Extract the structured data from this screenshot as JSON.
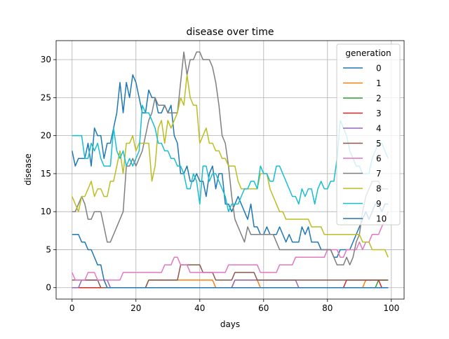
{
  "chart_data": {
    "type": "line",
    "title": "disease over time",
    "xlabel": "days",
    "ylabel": "disease",
    "xlim": [
      -5,
      104
    ],
    "ylim": [
      -1.5,
      32.5
    ],
    "xticks": [
      0,
      20,
      40,
      60,
      80,
      100
    ],
    "yticks": [
      0,
      5,
      10,
      15,
      20,
      25,
      30
    ],
    "grid": true,
    "legend": {
      "title": "generation",
      "placement": "top-right"
    },
    "series": [
      {
        "name": "0",
        "color": "#1f77b4",
        "values": [
          18,
          16,
          17,
          17,
          17,
          19,
          16,
          21,
          20,
          20,
          17,
          19,
          19,
          21,
          23,
          27,
          23,
          27,
          25,
          28,
          27,
          25,
          23,
          23,
          26,
          25,
          25,
          23,
          23,
          24,
          23,
          24,
          20,
          19,
          15,
          15,
          16,
          14,
          14,
          15,
          14,
          14,
          12,
          15,
          16,
          13,
          15,
          15,
          11,
          11,
          10,
          11,
          12,
          11,
          10,
          9,
          11,
          8,
          8,
          7,
          7,
          8,
          7,
          7,
          7,
          8,
          7,
          6,
          7,
          6,
          6,
          6,
          8,
          7,
          8,
          6,
          6,
          6,
          5,
          5,
          5,
          5,
          4,
          4,
          5,
          5,
          5,
          5,
          6,
          7,
          8,
          9,
          10,
          9,
          10,
          11,
          11,
          10,
          11,
          11
        ]
      },
      {
        "name": "1",
        "color": "#ff7f0e",
        "values": [
          0,
          0,
          0,
          0,
          0,
          0,
          0,
          0,
          0,
          0,
          0,
          0,
          0,
          0,
          0,
          0,
          0,
          0,
          0,
          0,
          0,
          0,
          0,
          0,
          1,
          1,
          1,
          1,
          1,
          1,
          1,
          1,
          1,
          1,
          1,
          1,
          1,
          1,
          1,
          1,
          1,
          1,
          1,
          1,
          1,
          0,
          0,
          0,
          0,
          0,
          0,
          1,
          1,
          1,
          1,
          1,
          1,
          1,
          1,
          0,
          0,
          0,
          0,
          0,
          0,
          0,
          0,
          0,
          0,
          0,
          0,
          0,
          0,
          0,
          0,
          0,
          0,
          0,
          0,
          0,
          0,
          0,
          0,
          0,
          0,
          0,
          0,
          0,
          0,
          0,
          0,
          0,
          1,
          1,
          1,
          1,
          1,
          1,
          1,
          1
        ]
      },
      {
        "name": "2",
        "color": "#2ca02c",
        "values": [
          0,
          0,
          0,
          0,
          0,
          0,
          0,
          0,
          0,
          0,
          0,
          0,
          0,
          0,
          0,
          0,
          0,
          0,
          0,
          0,
          0,
          0,
          0,
          0,
          0,
          0,
          0,
          0,
          0,
          0,
          0,
          0,
          0,
          0,
          0,
          0,
          0,
          0,
          0,
          0,
          0,
          0,
          0,
          0,
          0,
          0,
          0,
          0,
          0,
          0,
          0,
          0,
          0,
          0,
          0,
          0,
          0,
          0,
          0,
          0,
          0,
          0,
          0,
          0,
          0,
          0,
          0,
          0,
          0,
          0,
          0,
          0,
          0,
          0,
          0,
          0,
          0,
          0,
          0,
          0,
          0,
          0,
          0,
          0,
          0,
          0,
          0,
          0,
          0,
          0,
          0,
          0,
          0,
          0,
          0,
          0,
          1,
          1,
          1,
          1
        ]
      },
      {
        "name": "3",
        "color": "#d62728",
        "values": [
          0,
          0,
          0,
          0,
          0,
          0,
          0,
          0,
          0,
          0,
          0,
          0,
          0,
          0,
          0,
          0,
          0,
          0,
          0,
          0,
          0,
          0,
          0,
          0,
          0,
          0,
          0,
          0,
          0,
          0,
          0,
          0,
          0,
          0,
          0,
          0,
          0,
          0,
          0,
          0,
          0,
          0,
          0,
          0,
          0,
          0,
          0,
          0,
          0,
          0,
          0,
          0,
          0,
          0,
          0,
          0,
          0,
          0,
          0,
          0,
          0,
          0,
          0,
          0,
          0,
          0,
          0,
          0,
          0,
          0,
          0,
          0,
          0,
          0,
          0,
          0,
          0,
          0,
          0,
          0,
          0,
          0,
          0,
          0,
          0,
          0,
          1,
          1,
          1,
          1,
          1,
          1,
          1,
          1,
          1,
          1,
          1,
          0,
          0,
          0
        ]
      },
      {
        "name": "4",
        "color": "#9467bd",
        "values": [
          0,
          0,
          0,
          1,
          1,
          1,
          1,
          1,
          1,
          1,
          1,
          1,
          0,
          0,
          0,
          0,
          0,
          0,
          0,
          0,
          0,
          0,
          0,
          0,
          0,
          0,
          0,
          0,
          0,
          0,
          0,
          0,
          0,
          0,
          0,
          0,
          0,
          0,
          0,
          0,
          0,
          0,
          0,
          0,
          0,
          0,
          0,
          0,
          0,
          0,
          0,
          1,
          1,
          1,
          1,
          1,
          1,
          1,
          1,
          1,
          1,
          1,
          1,
          1,
          1,
          1,
          1,
          1,
          1,
          1,
          1,
          0,
          0,
          0,
          0,
          0,
          0,
          0,
          0,
          0,
          0,
          0,
          0,
          0,
          0,
          0,
          0,
          0,
          0,
          0,
          0,
          0,
          0,
          0,
          0,
          0,
          0,
          0,
          0,
          0
        ]
      },
      {
        "name": "5",
        "color": "#8c564b",
        "values": [
          1,
          1,
          1,
          1,
          1,
          1,
          1,
          1,
          1,
          0,
          0,
          0,
          0,
          0,
          0,
          0,
          0,
          0,
          0,
          0,
          0,
          0,
          0,
          0,
          1,
          1,
          1,
          1,
          1,
          1,
          1,
          1,
          1,
          1,
          3,
          3,
          3,
          3,
          3,
          3,
          3,
          2,
          2,
          2,
          2,
          1,
          1,
          1,
          1,
          1,
          1,
          2,
          2,
          2,
          2,
          2,
          2,
          2,
          1,
          1,
          1,
          1,
          1,
          1,
          1,
          1,
          1,
          1,
          1,
          1,
          1,
          1,
          1,
          1,
          1,
          1,
          1,
          1,
          1,
          1,
          1,
          1,
          1,
          1,
          1,
          1,
          1,
          1,
          1,
          1,
          1,
          1,
          1,
          1,
          1,
          1,
          1,
          1,
          1,
          1
        ]
      },
      {
        "name": "6",
        "color": "#e377c2",
        "values": [
          2,
          1,
          1,
          1,
          1,
          2,
          2,
          2,
          1,
          1,
          1,
          1,
          1,
          1,
          1,
          1,
          2,
          2,
          2,
          2,
          2,
          2,
          2,
          2,
          2,
          2,
          2,
          2,
          2,
          3,
          3,
          3,
          4,
          4,
          3,
          3,
          3,
          2,
          2,
          2,
          2,
          2,
          2,
          2,
          2,
          2,
          2,
          2,
          2,
          3,
          3,
          3,
          3,
          3,
          3,
          3,
          3,
          3,
          3,
          2,
          2,
          2,
          2,
          2,
          2,
          3,
          3,
          3,
          3,
          3,
          4,
          4,
          4,
          4,
          4,
          4,
          4,
          4,
          4,
          4,
          5,
          5,
          5,
          5,
          4,
          4,
          5,
          5,
          5,
          5,
          6,
          5,
          6,
          6,
          7,
          7,
          7,
          8,
          9,
          10
        ]
      },
      {
        "name": "7",
        "color": "#7f7f7f",
        "values": [
          10,
          10,
          11,
          12,
          11,
          9,
          9,
          10,
          10,
          10,
          8,
          6,
          6,
          7,
          8,
          9,
          10,
          16,
          16,
          17,
          16,
          17,
          18,
          20,
          22,
          23,
          25,
          24,
          24,
          24,
          23,
          23,
          23,
          23,
          27,
          31,
          28,
          30,
          30,
          31,
          31,
          30,
          30,
          30,
          29,
          27,
          24,
          20,
          19,
          16,
          12,
          9,
          8,
          7,
          6,
          8,
          7,
          7,
          7,
          7,
          7,
          7,
          7,
          7,
          6,
          5,
          5,
          5,
          5,
          5,
          5,
          5,
          5,
          5,
          5,
          5,
          5,
          5,
          5,
          5,
          5,
          5,
          4,
          3,
          3,
          3,
          4,
          3,
          4,
          6,
          7,
          10,
          12,
          13,
          14,
          14,
          14,
          13,
          13,
          13
        ]
      },
      {
        "name": "8",
        "color": "#bcbd22",
        "values": [
          12,
          11,
          10,
          12,
          12,
          13,
          14,
          12,
          13,
          13,
          12,
          12,
          14,
          14,
          16,
          18,
          15,
          19,
          19,
          20,
          18,
          19,
          19,
          19,
          19,
          14,
          16,
          21,
          22,
          19,
          22,
          21,
          22,
          23,
          25,
          24,
          28,
          25,
          24,
          24,
          19,
          20,
          21,
          19,
          19,
          18,
          18,
          17,
          17,
          16,
          16,
          16,
          14,
          13,
          13,
          13,
          13,
          13,
          13,
          15,
          15,
          15,
          13,
          12,
          11,
          10,
          10,
          9,
          9,
          9,
          9,
          9,
          9,
          9,
          9,
          8,
          8,
          8,
          8,
          7,
          7,
          7,
          7,
          7,
          7,
          7,
          7,
          7,
          7,
          7,
          7,
          6,
          6,
          6,
          5,
          5,
          5,
          5,
          5,
          4
        ]
      },
      {
        "name": "9",
        "color": "#17becf",
        "values": [
          20,
          20,
          20,
          20,
          17,
          17,
          19,
          18,
          19,
          17,
          16,
          16,
          16,
          21,
          18,
          17,
          18,
          16,
          17,
          16,
          17,
          18,
          24,
          23,
          23,
          22,
          21,
          19,
          19,
          18,
          18,
          17,
          17,
          16,
          16,
          15,
          13,
          13,
          15,
          14,
          11,
          16,
          16,
          14,
          15,
          15,
          14,
          13,
          12,
          10,
          11,
          11,
          11,
          12,
          13,
          13,
          14,
          14,
          13,
          16,
          15,
          15,
          14,
          14,
          16,
          16,
          15,
          14,
          13,
          12,
          12,
          11,
          13,
          12,
          13,
          13,
          11,
          13,
          14,
          13,
          13,
          14,
          14,
          17,
          22,
          21,
          20,
          18,
          17,
          16,
          16,
          15,
          15,
          15,
          17,
          18,
          19,
          19,
          18,
          17
        ]
      },
      {
        "name": "10",
        "color": "#1f77b4",
        "values": [
          7,
          7,
          7,
          6,
          6,
          5,
          5,
          4,
          3,
          3,
          1,
          0,
          0,
          0,
          0,
          0,
          0,
          0,
          0,
          0,
          0,
          0,
          0,
          0,
          0,
          0,
          0,
          0,
          0,
          0,
          0,
          0,
          0,
          0,
          0,
          0,
          0,
          0,
          0,
          0,
          0,
          0,
          0,
          0,
          0,
          0,
          0,
          0,
          0,
          0,
          0,
          0,
          0,
          0,
          0,
          0,
          0,
          0,
          0,
          0,
          0,
          0,
          0,
          0,
          0,
          0,
          0,
          0,
          0,
          0,
          0,
          0,
          0,
          0,
          0,
          0,
          0,
          0,
          0,
          0,
          0,
          0,
          0,
          0,
          0,
          0,
          0,
          0,
          0,
          0,
          0,
          0,
          0,
          0,
          0,
          0,
          0,
          0,
          0,
          0
        ]
      }
    ]
  }
}
